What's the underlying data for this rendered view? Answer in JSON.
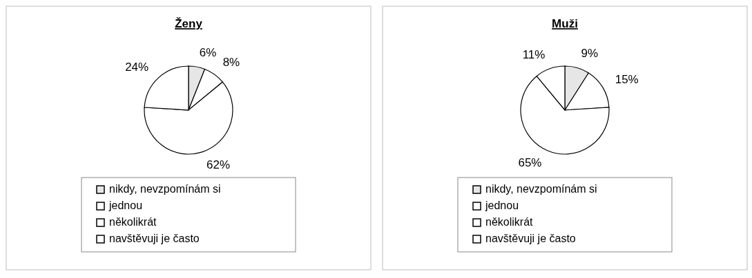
{
  "chart_data": [
    {
      "type": "pie",
      "title": "Ženy",
      "categories": [
        "nikdy, nevzpomínám si",
        "jednou",
        "několikrát",
        "navštěvuji je často"
      ],
      "values": [
        6,
        8,
        62,
        24
      ],
      "value_labels": [
        "6%",
        "8%",
        "62%",
        "24%"
      ],
      "colors": [
        "#e6e6e6",
        "#ffffff",
        "#ffffff",
        "#ffffff"
      ],
      "legend": "bottom"
    },
    {
      "type": "pie",
      "title": "Muži",
      "categories": [
        "nikdy, nevzpomínám si",
        "jednou",
        "několikrát",
        "navštěvuji je často"
      ],
      "values": [
        9,
        15,
        65,
        11
      ],
      "value_labels": [
        "9%",
        "15%",
        "65%",
        "11%"
      ],
      "colors": [
        "#e6e6e6",
        "#ffffff",
        "#ffffff",
        "#ffffff"
      ],
      "legend": "bottom"
    }
  ]
}
